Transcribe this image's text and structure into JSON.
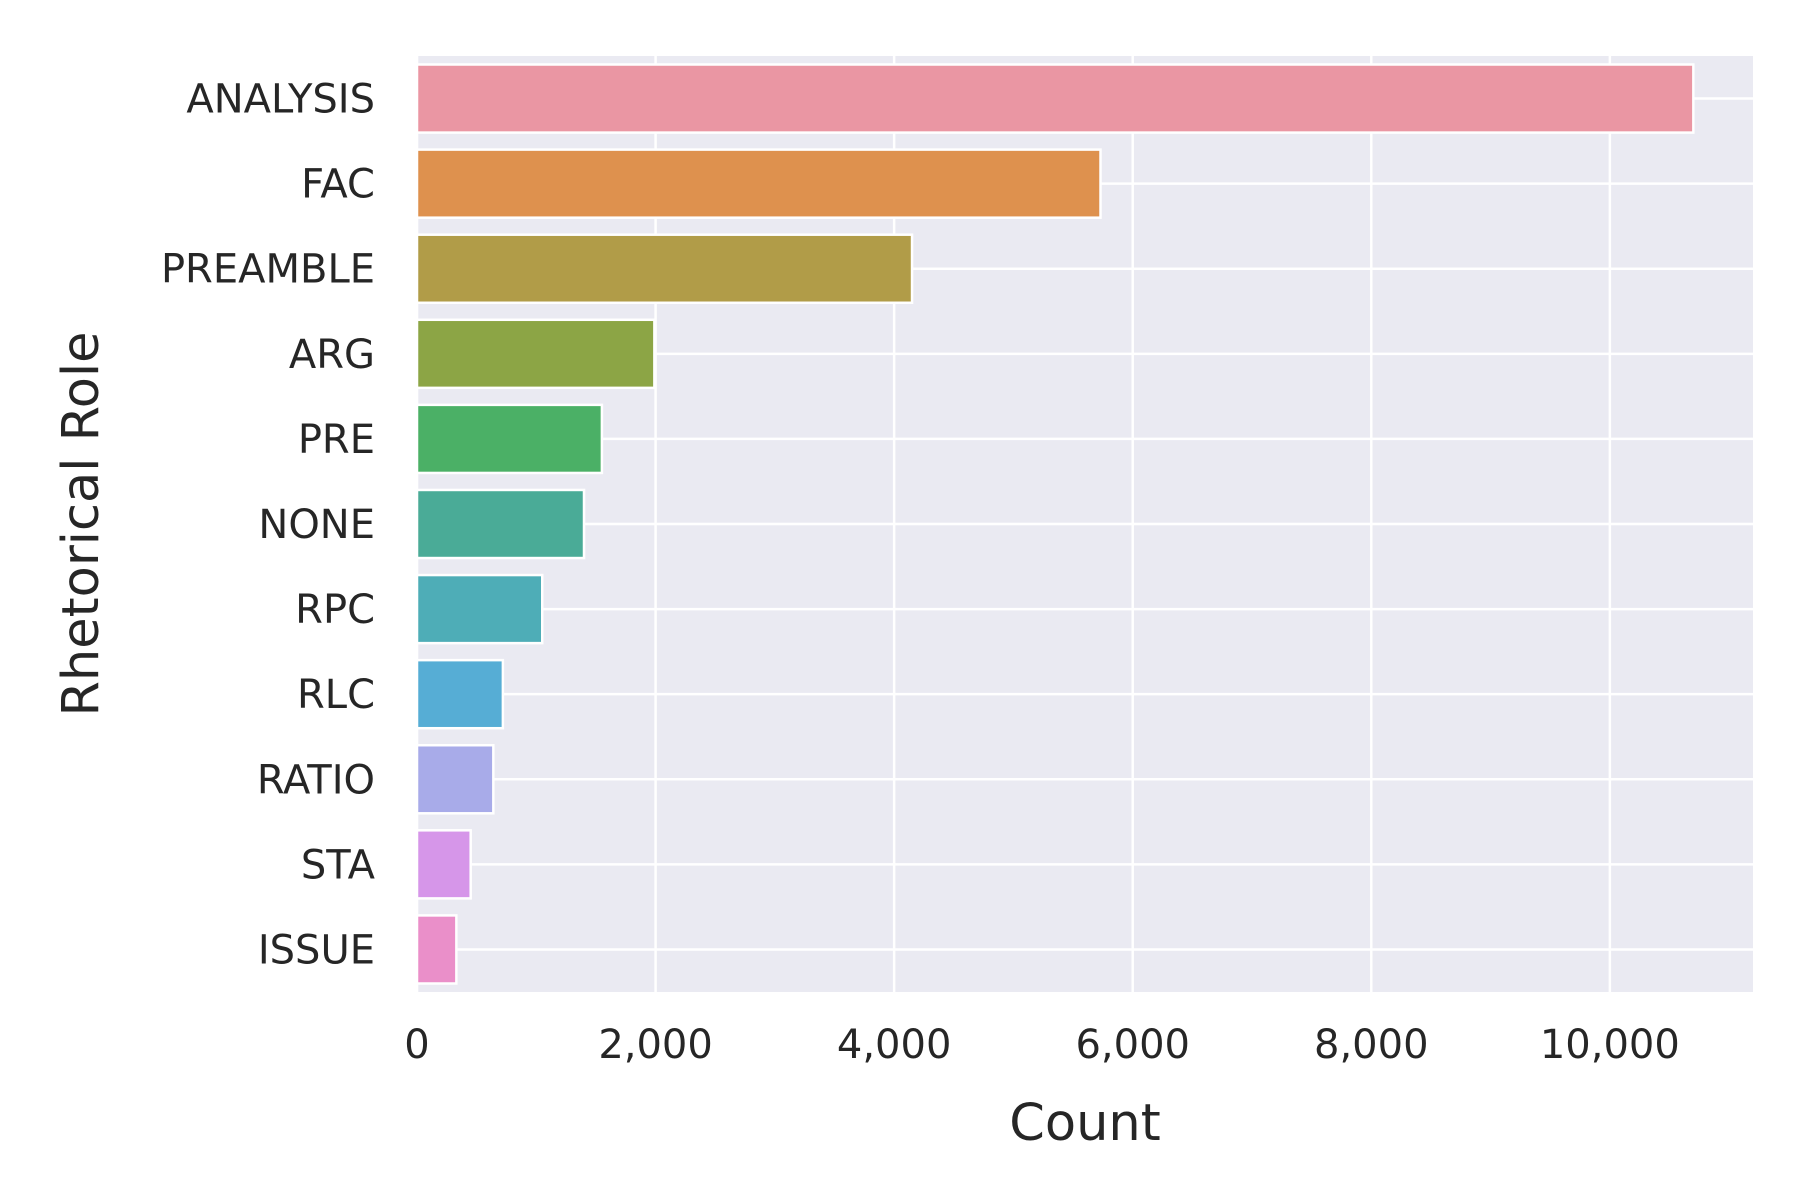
{
  "chart_data": {
    "type": "bar",
    "orientation": "horizontal",
    "categories": [
      "ANALYSIS",
      "FAC",
      "PREAMBLE",
      "ARG",
      "PRE",
      "NONE",
      "RPC",
      "RLC",
      "RATIO",
      "STA",
      "ISSUE"
    ],
    "values": [
      10700,
      5730,
      4150,
      1990,
      1550,
      1400,
      1050,
      720,
      640,
      450,
      330
    ],
    "colors": [
      "#ea96a3",
      "#de914e",
      "#b19c48",
      "#8ca545",
      "#4bb066",
      "#4aab97",
      "#4eadb7",
      "#56add5",
      "#a8abe9",
      "#d696e9",
      "#ea8fc9"
    ],
    "xlabel": "Count",
    "ylabel": "Rhetorical Role",
    "xticks": [
      "0",
      "2,000",
      "4,000",
      "6,000",
      "8,000",
      "10,000"
    ],
    "xtick_values": [
      0,
      2000,
      4000,
      6000,
      8000,
      10000
    ],
    "xlim": [
      0,
      11200
    ],
    "grid": true,
    "grid_axis": "x",
    "background": "#eaeaf2",
    "style": "seaborn darkgrid"
  }
}
